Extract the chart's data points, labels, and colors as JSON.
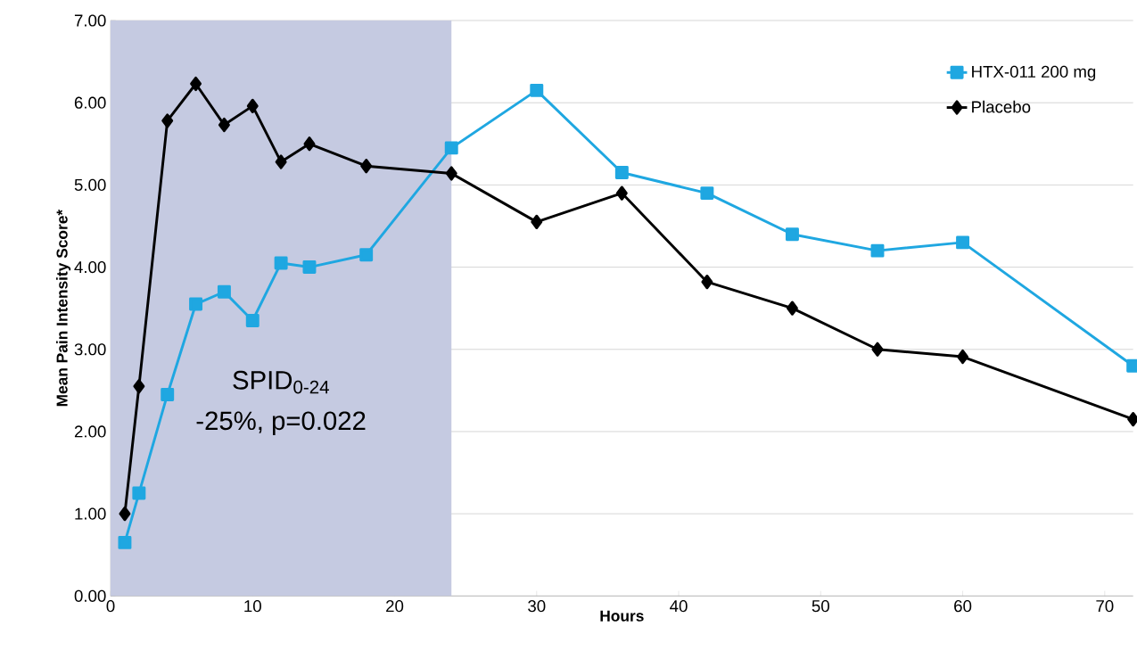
{
  "chart_data": {
    "type": "line",
    "xlabel": "Hours",
    "ylabel": "Mean Pain Intensity Score*",
    "x": [
      1,
      2,
      4,
      6,
      8,
      10,
      12,
      14,
      18,
      24,
      30,
      36,
      42,
      48,
      54,
      60,
      72
    ],
    "series": [
      {
        "name": "HTX-011 200 mg",
        "color": "#1fa7e1",
        "marker": "square",
        "values": [
          0.65,
          1.25,
          2.45,
          3.55,
          3.7,
          3.35,
          4.05,
          4.0,
          4.15,
          5.45,
          6.15,
          5.15,
          4.9,
          4.4,
          4.2,
          4.3,
          2.8
        ]
      },
      {
        "name": "Placebo",
        "color": "#000000",
        "marker": "diamond",
        "values": [
          1.0,
          2.55,
          5.78,
          6.23,
          5.73,
          5.96,
          5.28,
          5.5,
          5.23,
          5.14,
          4.55,
          4.9,
          3.82,
          3.5,
          3.0,
          2.91,
          2.15
        ]
      }
    ],
    "xlim": [
      0,
      72
    ],
    "xticks": [
      0,
      10,
      20,
      30,
      40,
      50,
      60,
      70
    ],
    "ylim": [
      0,
      7
    ],
    "yticks": [
      {
        "value": 0,
        "label": "0.00"
      },
      {
        "value": 1,
        "label": "1.00"
      },
      {
        "value": 2,
        "label": "2.00"
      },
      {
        "value": 3,
        "label": "3.00"
      },
      {
        "value": 4,
        "label": "4.00"
      },
      {
        "value": 5,
        "label": "5.00"
      },
      {
        "value": 6,
        "label": "6.00"
      },
      {
        "value": 7,
        "label": "7.00"
      }
    ],
    "bands": [
      {
        "axis": "x",
        "from": 0,
        "to": 24,
        "color": "#c5cae1"
      }
    ],
    "annotations": [
      "SPID$_{0-24}$",
      "-25%, p=0.022"
    ],
    "grid": "y",
    "legend": "top right",
    "line_style": "solid"
  }
}
